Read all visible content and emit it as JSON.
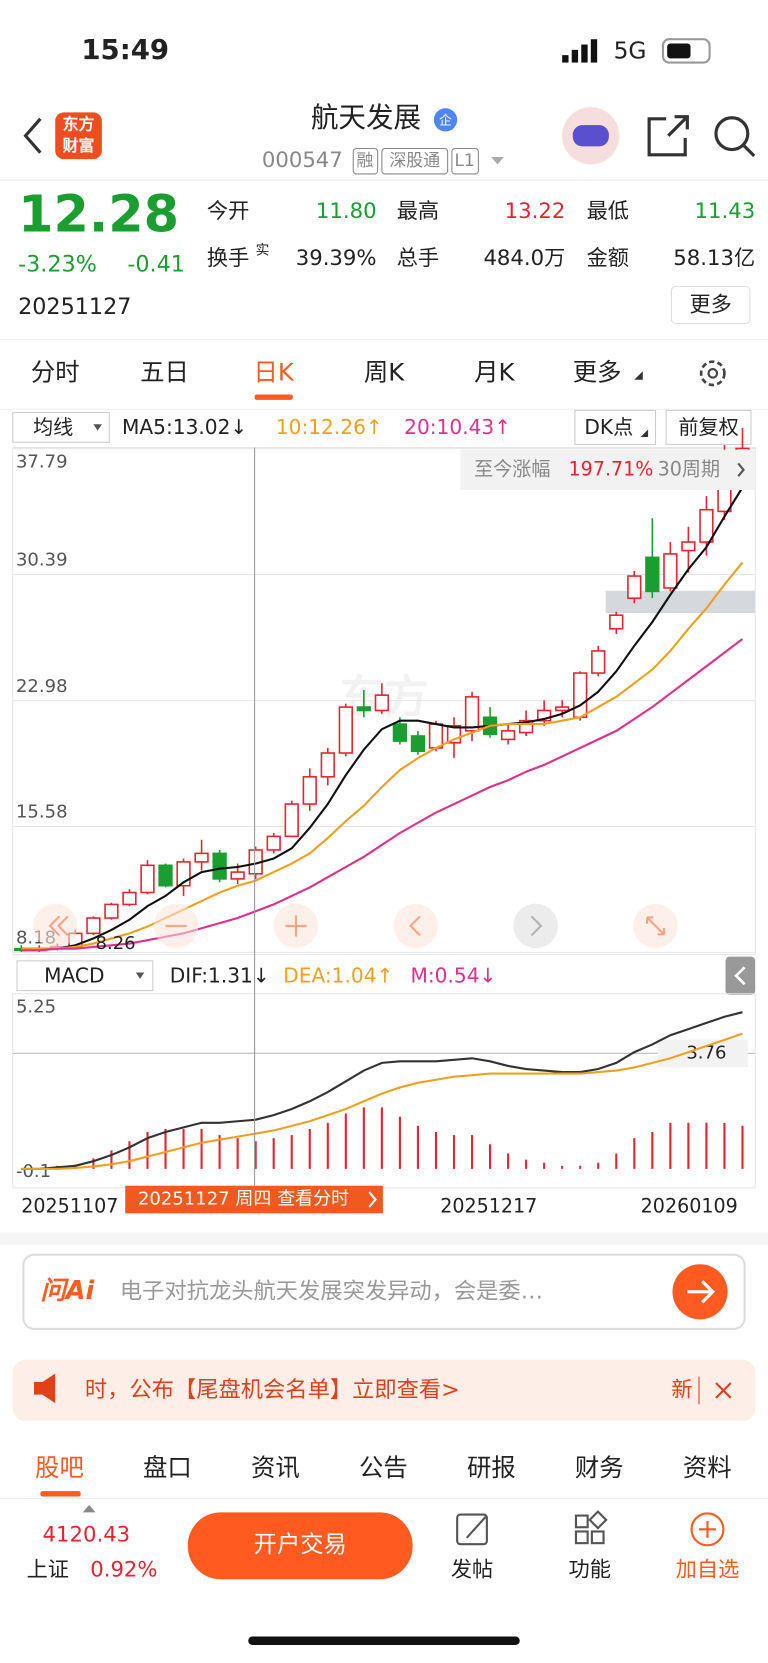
{
  "status": {
    "time": "15:49",
    "network": "5G"
  },
  "header": {
    "logo": [
      "东方",
      "财富"
    ],
    "title": "航天发展",
    "badge": "企",
    "code": "000547",
    "tags": [
      "融",
      "深股通",
      "L1"
    ]
  },
  "quote": {
    "price": "12.28",
    "change_pct": "-3.23%",
    "change": "-0.41",
    "date": "20251127",
    "fields": [
      {
        "label": "今开",
        "value": "11.80"
      },
      {
        "label": "最高",
        "value": "13.22"
      },
      {
        "label": "最低",
        "value": "11.43"
      },
      {
        "label": "换手",
        "sup": "实",
        "value": "39.39%"
      },
      {
        "label": "总手",
        "value": "484.0万"
      },
      {
        "label": "金额",
        "value": "58.13亿"
      }
    ],
    "more": "更多"
  },
  "tabs": [
    "分时",
    "五日",
    "日K",
    "周K",
    "月K",
    "更多"
  ],
  "indicators": {
    "select": "均线",
    "ma5": "MA5:13.02↓",
    "ma10": "10:12.26↑",
    "ma20": "20:10.43↑",
    "dk": "DK点",
    "fq": "前复权"
  },
  "kline": {
    "ylim": [
      8.18,
      37.79
    ],
    "yticks": [
      8.18,
      15.58,
      22.98,
      30.39,
      37.79
    ],
    "low_label": "8.26",
    "gain": {
      "label": "至今涨幅",
      "value": "197.71%",
      "period": "30周期"
    },
    "open": [
      8.4,
      8.3,
      8.4,
      8.5,
      9.3,
      10.2,
      11.0,
      11.7,
      13.3,
      12.1,
      13.5,
      14.0,
      12.5,
      12.8,
      14.2,
      15.0,
      16.9,
      18.5,
      19.9,
      22.6,
      22.4,
      21.6,
      20.9,
      20.2,
      20.5,
      21.2,
      22.0,
      20.7,
      21.1,
      21.8,
      22.4,
      22.0,
      24.6,
      27.2,
      29.0,
      31.4,
      29.6,
      31.8,
      32.3,
      34.1,
      36.0
    ],
    "close": [
      8.3,
      8.4,
      8.5,
      9.3,
      10.2,
      11.0,
      11.7,
      13.3,
      12.1,
      13.5,
      14.0,
      12.5,
      12.9,
      14.2,
      15.0,
      16.9,
      18.5,
      19.9,
      22.6,
      22.4,
      23.3,
      20.6,
      20.0,
      21.6,
      21.5,
      23.2,
      21.0,
      21.2,
      21.8,
      22.4,
      22.6,
      24.6,
      25.9,
      28.0,
      30.3,
      29.4,
      31.6,
      32.3,
      34.2,
      36.7,
      37.8
    ],
    "high": [
      8.6,
      8.6,
      8.7,
      9.5,
      10.3,
      11.1,
      11.9,
      13.6,
      13.4,
      13.7,
      14.8,
      14.2,
      13.4,
      14.4,
      15.2,
      17.1,
      19.0,
      20.2,
      22.8,
      23.6,
      24.0,
      22.0,
      21.2,
      21.8,
      22.0,
      23.5,
      22.6,
      21.6,
      22.4,
      23.0,
      23.0,
      24.7,
      26.2,
      28.2,
      30.6,
      33.7,
      32.3,
      33.2,
      35.0,
      38.0,
      39.0
    ],
    "low": [
      8.2,
      8.2,
      8.3,
      8.4,
      9.2,
      10.1,
      10.9,
      11.6,
      12.0,
      11.5,
      13.0,
      12.3,
      12.2,
      12.5,
      14.0,
      15.0,
      16.5,
      18.0,
      19.7,
      22.0,
      22.2,
      20.4,
      19.8,
      20.0,
      19.6,
      20.6,
      20.8,
      20.4,
      20.9,
      21.5,
      22.0,
      21.8,
      24.4,
      26.9,
      28.7,
      29.0,
      29.4,
      30.5,
      31.5,
      33.6,
      35.5
    ],
    "ma5": [
      8.4,
      8.4,
      8.4,
      8.6,
      9.0,
      9.5,
      10.1,
      10.9,
      11.5,
      12.3,
      12.9,
      13.1,
      13.2,
      13.4,
      13.7,
      14.3,
      15.5,
      16.9,
      18.6,
      20.1,
      21.3,
      21.8,
      21.8,
      21.6,
      21.4,
      21.4,
      21.5,
      21.6,
      21.7,
      21.9,
      22.2,
      22.7,
      23.5,
      24.7,
      26.2,
      27.6,
      29.2,
      30.7,
      32.0,
      33.8,
      35.5
    ],
    "ma10": [
      8.4,
      8.4,
      8.4,
      8.5,
      8.7,
      9.0,
      9.3,
      9.7,
      10.2,
      10.7,
      11.2,
      11.7,
      12.1,
      12.4,
      12.9,
      13.4,
      14.0,
      14.9,
      15.9,
      16.8,
      17.9,
      18.9,
      19.6,
      20.2,
      20.7,
      21.1,
      21.5,
      21.6,
      21.6,
      21.6,
      21.8,
      22.0,
      22.6,
      23.2,
      24.0,
      24.8,
      25.9,
      27.2,
      28.4,
      29.8,
      31.1
    ],
    "ma20": [
      8.3,
      8.3,
      8.4,
      8.4,
      8.5,
      8.6,
      8.7,
      8.9,
      9.1,
      9.3,
      9.6,
      9.9,
      10.2,
      10.6,
      11.0,
      11.5,
      12.0,
      12.6,
      13.2,
      13.8,
      14.5,
      15.2,
      15.8,
      16.4,
      16.9,
      17.4,
      17.9,
      18.3,
      18.8,
      19.2,
      19.7,
      20.2,
      20.7,
      21.2,
      21.9,
      22.6,
      23.4,
      24.2,
      25.0,
      25.8,
      26.6
    ]
  },
  "macd": {
    "select": "MACD",
    "dif_label": "DIF:1.31↓",
    "dea_label": "DEA:1.04↑",
    "m_label": "M:0.54↓",
    "ylim": [
      -0.1,
      5.25
    ],
    "yticks": [
      -0.1,
      5.25
    ],
    "mark": 3.76,
    "dif": [
      0,
      0,
      0.05,
      0.1,
      0.25,
      0.45,
      0.7,
      1.0,
      1.2,
      1.35,
      1.5,
      1.5,
      1.55,
      1.6,
      1.75,
      1.95,
      2.2,
      2.5,
      2.85,
      3.2,
      3.45,
      3.5,
      3.5,
      3.5,
      3.55,
      3.6,
      3.5,
      3.35,
      3.25,
      3.2,
      3.15,
      3.15,
      3.25,
      3.45,
      3.8,
      4.05,
      4.35,
      4.55,
      4.75,
      4.95,
      5.1
    ],
    "dea": [
      0,
      0,
      0,
      0.03,
      0.08,
      0.15,
      0.25,
      0.4,
      0.55,
      0.7,
      0.85,
      0.95,
      1.05,
      1.15,
      1.25,
      1.4,
      1.55,
      1.75,
      1.95,
      2.2,
      2.45,
      2.65,
      2.8,
      2.9,
      3.0,
      3.05,
      3.1,
      3.1,
      3.1,
      3.1,
      3.1,
      3.1,
      3.15,
      3.2,
      3.3,
      3.45,
      3.6,
      3.8,
      4.0,
      4.2,
      4.4
    ],
    "m": [
      0,
      0,
      0.1,
      0.14,
      0.34,
      0.6,
      0.9,
      1.2,
      1.3,
      1.3,
      1.3,
      1.1,
      1.0,
      0.9,
      1.0,
      1.1,
      1.3,
      1.5,
      1.8,
      2.0,
      2.0,
      1.7,
      1.4,
      1.2,
      1.1,
      1.1,
      0.8,
      0.5,
      0.3,
      0.2,
      0.1,
      0.1,
      0.2,
      0.5,
      1.0,
      1.2,
      1.5,
      1.5,
      1.5,
      1.5,
      1.4
    ]
  },
  "dates": [
    "20251107",
    "20251217",
    "20260109"
  ],
  "crosshair": "20251127 周四 查看分时",
  "ai": {
    "brand": "问Ai",
    "text": "电子对抗龙头航天发展突发异动，会是委…"
  },
  "notice": {
    "text": "时，公布【尾盘机会名单】立即查看>",
    "tag": "新"
  },
  "bottom_tabs": [
    "股吧",
    "盘口",
    "资讯",
    "公告",
    "研报",
    "财务",
    "资料"
  ],
  "footer": {
    "index_value": "4120.43",
    "index_name": "上证",
    "index_change": "0.92%",
    "trade": "开户交易",
    "actions": [
      "发帖",
      "功能",
      "加自选"
    ]
  }
}
